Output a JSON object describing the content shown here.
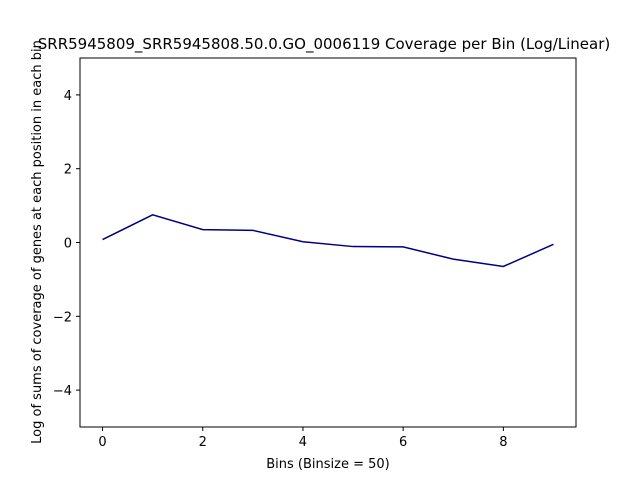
{
  "chart_data": {
    "type": "line",
    "title": "SRR5945809_SRR5945808.50.0.GO_0006119 Coverage per Bin (Log/Linear)",
    "xlabel": "Bins (Binsize = 50)",
    "ylabel": "Log of sums of coverage of genes at each position in each bin",
    "x": [
      0,
      1,
      2,
      3,
      4,
      5,
      6,
      7,
      8,
      9
    ],
    "series": [
      {
        "values": [
          0.08,
          0.75,
          0.35,
          0.33,
          0.02,
          -0.11,
          -0.12,
          -0.45,
          -0.65,
          -0.05
        ]
      }
    ],
    "xlim": [
      -0.45,
      9.45
    ],
    "ylim": [
      -5,
      5
    ],
    "xticks": [
      0,
      2,
      4,
      6,
      8
    ],
    "yticks": [
      -4,
      -2,
      0,
      2,
      4
    ],
    "xtick_labels": [
      "0",
      "2",
      "4",
      "6",
      "8"
    ],
    "ytick_labels": [
      "−4",
      "−2",
      "0",
      "2",
      "4"
    ],
    "line_color": "#000080",
    "grid": false,
    "legend": false
  }
}
